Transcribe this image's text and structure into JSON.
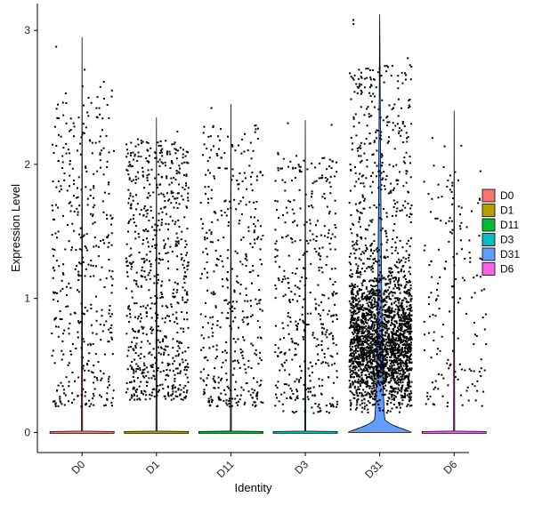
{
  "chart_data": {
    "type": "violin",
    "xlabel": "Identity",
    "ylabel": "Expression Level",
    "categories": [
      "D0",
      "D1",
      "D11",
      "D3",
      "D31",
      "D6"
    ],
    "ylim": [
      -0.15,
      3.2
    ],
    "yticks": [
      0,
      1,
      2,
      3
    ],
    "legend_position": "right",
    "legend_entries": [
      "D0",
      "D1",
      "D11",
      "D3",
      "D31",
      "D6"
    ],
    "colors": [
      "#F8766D",
      "#B79F00",
      "#00BA38",
      "#00BFC4",
      "#619CFF",
      "#F564E3"
    ],
    "max_values": [
      2.95,
      2.35,
      2.45,
      2.33,
      3.12,
      2.4
    ],
    "jitter_point_counts": [
      420,
      720,
      420,
      420,
      2600,
      170
    ],
    "expressed_ranges": [
      [
        0.2,
        2.6
      ],
      [
        0.25,
        2.2
      ],
      [
        0.2,
        2.3
      ],
      [
        0.15,
        2.1
      ],
      [
        0.15,
        2.75
      ],
      [
        0.2,
        2.0
      ]
    ],
    "zero_bulge_width": [
      0,
      0,
      0,
      0,
      1,
      0
    ]
  }
}
